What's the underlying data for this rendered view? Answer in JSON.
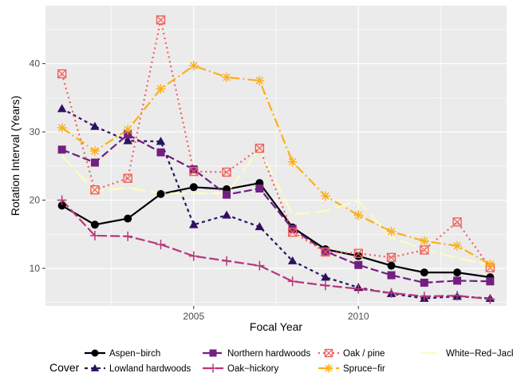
{
  "chart_data": {
    "type": "line",
    "xlabel": "Focal Year",
    "ylabel": "Rotation Interval (Years)",
    "xlim": [
      2000.5,
      2014.5
    ],
    "ylim": [
      4.5,
      48.5
    ],
    "x_ticks": [
      2005,
      2010
    ],
    "y_ticks": [
      10,
      20,
      30,
      40
    ],
    "x_ticks_label": [
      "2005",
      "2010"
    ],
    "y_ticks_label": [
      "10",
      "20",
      "30",
      "40"
    ],
    "grid": true,
    "legend_title": "Cover",
    "legend_position": "bottom",
    "x": [
      2001,
      2002,
      2003,
      2004,
      2005,
      2006,
      2007,
      2008,
      2009,
      2010,
      2011,
      2012,
      2013,
      2014
    ],
    "series": [
      {
        "name": "Aspen−birch",
        "color": "#000004",
        "dash": "",
        "marker": "circle",
        "values": [
          19.2,
          16.4,
          17.3,
          20.9,
          21.9,
          21.6,
          22.5,
          16.0,
          12.8,
          11.8,
          10.4,
          9.4,
          9.4,
          8.7
        ]
      },
      {
        "name": "Lowland hardwoods",
        "color": "#2d1160",
        "dash": "4,4",
        "marker": "triangle",
        "values": [
          33.4,
          30.8,
          28.7,
          28.6,
          16.4,
          17.8,
          16.1,
          11.1,
          8.7,
          7.2,
          6.3,
          5.6,
          5.9,
          5.6
        ]
      },
      {
        "name": "Northern hardwoods",
        "color": "#721f81",
        "dash": "10,4",
        "marker": "square",
        "values": [
          27.4,
          25.5,
          29.6,
          27.0,
          24.5,
          20.8,
          21.7,
          15.8,
          12.5,
          10.5,
          9.0,
          7.9,
          8.2,
          8.1
        ]
      },
      {
        "name": "Oak−hickory",
        "color": "#b73779",
        "dash": "12,4",
        "marker": "plus",
        "values": [
          20.0,
          14.8,
          14.7,
          13.5,
          11.8,
          11.1,
          10.4,
          8.1,
          7.5,
          7.0,
          6.4,
          5.9,
          6.0,
          5.5
        ]
      },
      {
        "name": "Oak / pine",
        "color": "#f1605d",
        "dash": "2,4",
        "marker": "square-x",
        "values": [
          38.5,
          21.5,
          23.2,
          46.4,
          24.2,
          24.1,
          27.6,
          15.3,
          12.4,
          12.2,
          11.6,
          12.7,
          16.8,
          10.1
        ]
      },
      {
        "name": "Spruce−fir",
        "color": "#fcaf17",
        "dash": "12,4,2,4",
        "marker": "asterisk",
        "values": [
          30.6,
          27.2,
          30.3,
          36.3,
          39.7,
          38.0,
          37.5,
          25.6,
          20.6,
          17.8,
          15.4,
          14.0,
          13.3,
          10.6
        ]
      },
      {
        "name": "White−Red−Jack Pine",
        "color": "#fcfdbf",
        "dash": "20,6",
        "marker": "none",
        "values": [
          26.5,
          21.3,
          21.8,
          21.0,
          21.0,
          21.0,
          27.5,
          17.9,
          18.4,
          19.9,
          14.5,
          12.8,
          11.5,
          10.5
        ]
      }
    ]
  }
}
